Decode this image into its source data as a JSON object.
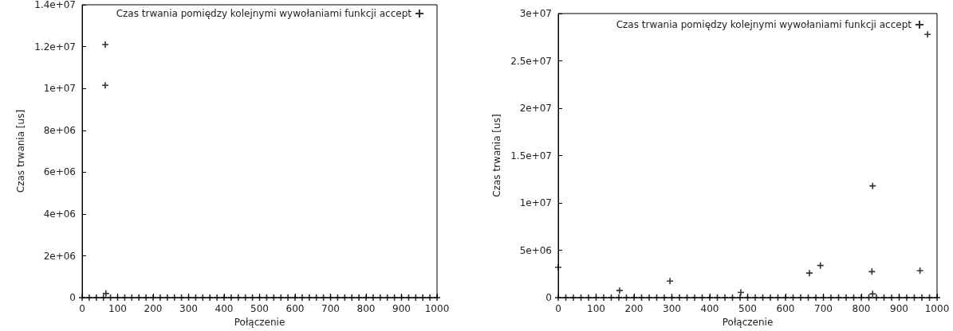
{
  "chart_data": [
    {
      "type": "scatter",
      "xlabel": "Połączenie",
      "ylabel": "Czas trwania [us]",
      "marker": "cross",
      "legend": "top right",
      "grid": false,
      "xlim": [
        0,
        1000
      ],
      "xticks": [
        0,
        100,
        200,
        300,
        400,
        500,
        600,
        700,
        800,
        900,
        1000
      ],
      "ylim": [
        0,
        14000000
      ],
      "yticks": [
        0,
        {
          "value": 2000000,
          "label": "2e+06"
        },
        {
          "value": 4000000,
          "label": "4e+06"
        },
        {
          "value": 6000000,
          "label": "6e+06"
        },
        {
          "value": 8000000,
          "label": "8e+06"
        },
        {
          "value": 10000000,
          "label": "1e+07"
        },
        {
          "value": 12000000,
          "label": "1.2e+07"
        },
        {
          "value": 14000000,
          "label": "1.4e+07"
        }
      ],
      "series": [
        {
          "name": "Czas trwania pomiędzy kolejnymi wywołaniami funkcji accept",
          "color": "#000000",
          "x": [
            0,
            20,
            40,
            60,
            80,
            100,
            120,
            140,
            160,
            180,
            200,
            220,
            240,
            260,
            280,
            300,
            320,
            340,
            360,
            380,
            400,
            420,
            440,
            460,
            480,
            500,
            520,
            540,
            560,
            580,
            600,
            620,
            640,
            660,
            680,
            700,
            720,
            740,
            760,
            780,
            800,
            820,
            840,
            860,
            880,
            900,
            920,
            940,
            960,
            980,
            1000,
            65,
            65,
            67
          ],
          "values": [
            0,
            0,
            0,
            0,
            0,
            0,
            0,
            0,
            0,
            0,
            0,
            0,
            0,
            0,
            0,
            0,
            0,
            0,
            0,
            0,
            0,
            0,
            0,
            0,
            0,
            0,
            0,
            0,
            0,
            0,
            0,
            0,
            0,
            0,
            0,
            0,
            0,
            0,
            0,
            0,
            0,
            0,
            0,
            0,
            0,
            0,
            0,
            0,
            0,
            0,
            0,
            12100000,
            10150000,
            200000
          ]
        }
      ]
    },
    {
      "type": "scatter",
      "xlabel": "Połączenie",
      "ylabel": "Czas trwania [us]",
      "marker": "cross",
      "legend": "top right",
      "grid": false,
      "xlim": [
        0,
        1000
      ],
      "xticks": [
        0,
        100,
        200,
        300,
        400,
        500,
        600,
        700,
        800,
        900,
        1000
      ],
      "ylim": [
        0,
        30000000
      ],
      "yticks": [
        0,
        {
          "value": 5000000,
          "label": "5e+06"
        },
        {
          "value": 10000000,
          "label": "1e+07"
        },
        {
          "value": 15000000,
          "label": "1.5e+07"
        },
        {
          "value": 20000000,
          "label": "2e+07"
        },
        {
          "value": 25000000,
          "label": "2.5e+07"
        },
        {
          "value": 30000000,
          "label": "3e+07"
        }
      ],
      "series": [
        {
          "name": "Czas trwania pomiędzy kolejnymi wywołaniami funkcji accept",
          "color": "#000000",
          "x": [
            0,
            20,
            40,
            60,
            80,
            100,
            120,
            140,
            160,
            180,
            200,
            220,
            240,
            260,
            280,
            300,
            320,
            340,
            360,
            380,
            400,
            420,
            440,
            460,
            480,
            500,
            520,
            540,
            560,
            580,
            600,
            620,
            640,
            660,
            680,
            700,
            720,
            740,
            760,
            780,
            800,
            820,
            840,
            860,
            880,
            900,
            920,
            940,
            960,
            980,
            1000,
            0,
            162,
            295,
            482,
            663,
            692,
            828,
            830,
            830,
            955,
            975
          ],
          "values": [
            0,
            0,
            0,
            0,
            0,
            0,
            0,
            0,
            0,
            0,
            0,
            0,
            0,
            0,
            0,
            0,
            0,
            0,
            0,
            0,
            0,
            0,
            0,
            0,
            0,
            0,
            0,
            0,
            0,
            0,
            0,
            0,
            0,
            0,
            0,
            0,
            0,
            0,
            0,
            0,
            0,
            0,
            0,
            0,
            0,
            0,
            0,
            0,
            0,
            0,
            0,
            3200000,
            750000,
            1750000,
            550000,
            2600000,
            3400000,
            2750000,
            11800000,
            400000,
            2850000,
            27800000
          ]
        }
      ]
    }
  ]
}
